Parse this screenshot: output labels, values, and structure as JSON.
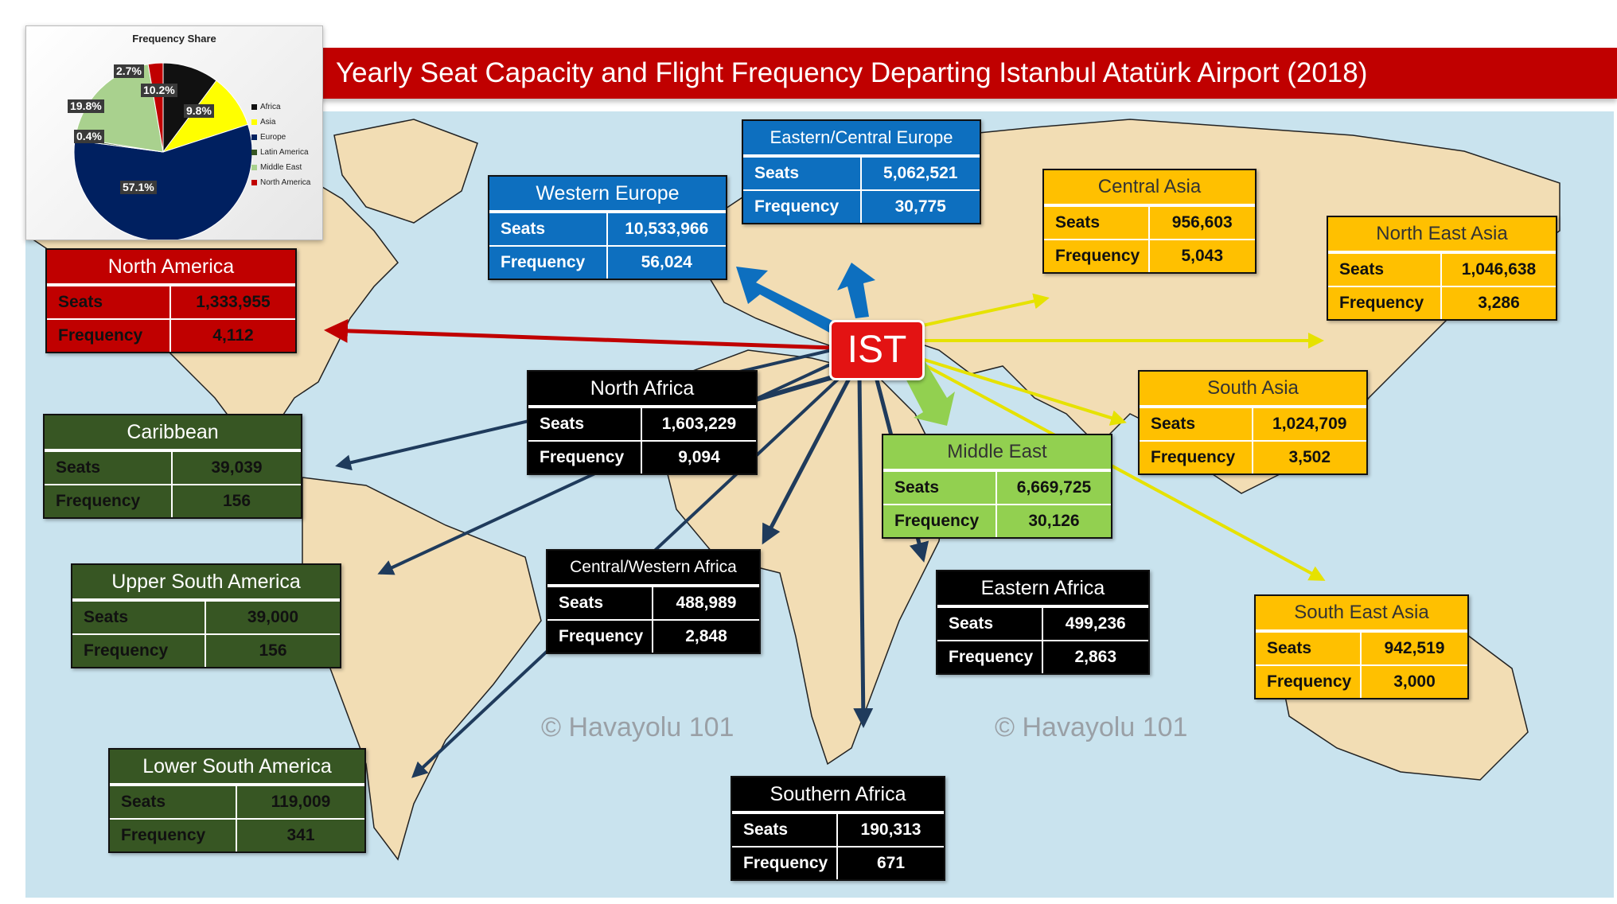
{
  "title": "Yearly Seat Capacity and Flight Frequency Departing Istanbul Atatürk Airport (2018)",
  "hub": "IST",
  "watermark": "© Havayolu 101",
  "row_labels": {
    "seats": "Seats",
    "frequency": "Frequency"
  },
  "pie": {
    "title": "Frequency Share",
    "slices": [
      {
        "name": "Africa",
        "value": 10.2,
        "label": "10.2%",
        "color": "#111111"
      },
      {
        "name": "Asia",
        "value": 9.8,
        "label": "9.8%",
        "color": "#ffff00"
      },
      {
        "name": "Europe",
        "value": 57.1,
        "label": "57.1%",
        "color": "#002060"
      },
      {
        "name": "Latin America",
        "value": 0.4,
        "label": "0.4%",
        "color": "#375623"
      },
      {
        "name": "Middle East",
        "value": 19.8,
        "label": "19.8%",
        "color": "#a9d18e"
      },
      {
        "name": "North America",
        "value": 2.7,
        "label": "2.7%",
        "color": "#c00000"
      }
    ]
  },
  "regions": {
    "western_europe": {
      "name": "Western Europe",
      "seats": "10,533,966",
      "frequency": "56,024"
    },
    "eastern_central_europe": {
      "name": "Eastern/Central Europe",
      "seats": "5,062,521",
      "frequency": "30,775"
    },
    "central_asia": {
      "name": "Central Asia",
      "seats": "956,603",
      "frequency": "5,043"
    },
    "north_east_asia": {
      "name": "North East Asia",
      "seats": "1,046,638",
      "frequency": "3,286"
    },
    "north_america": {
      "name": "North America",
      "seats": "1,333,955",
      "frequency": "4,112"
    },
    "north_africa": {
      "name": "North Africa",
      "seats": "1,603,229",
      "frequency": "9,094"
    },
    "south_asia": {
      "name": "South Asia",
      "seats": "1,024,709",
      "frequency": "3,502"
    },
    "caribbean": {
      "name": "Caribbean",
      "seats": "39,039",
      "frequency": "156"
    },
    "middle_east": {
      "name": "Middle East",
      "seats": "6,669,725",
      "frequency": "30,126"
    },
    "upper_south_america": {
      "name": "Upper South America",
      "seats": "39,000",
      "frequency": "156"
    },
    "central_western_africa": {
      "name": "Central/Western Africa",
      "seats": "488,989",
      "frequency": "2,848"
    },
    "eastern_africa": {
      "name": "Eastern Africa",
      "seats": "499,236",
      "frequency": "2,863"
    },
    "south_east_asia": {
      "name": "South East Asia",
      "seats": "942,519",
      "frequency": "3,000"
    },
    "lower_south_america": {
      "name": "Lower South America",
      "seats": "119,009",
      "frequency": "341"
    },
    "southern_africa": {
      "name": "Southern Africa",
      "seats": "190,313",
      "frequency": "671"
    }
  }
}
